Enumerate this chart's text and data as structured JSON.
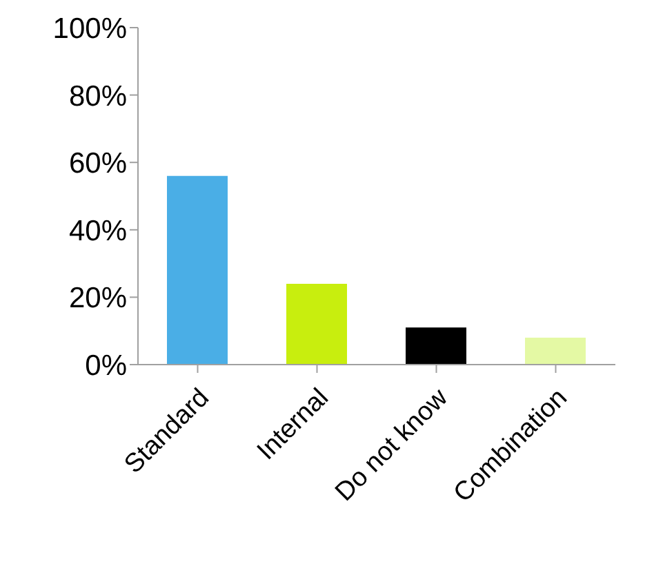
{
  "chart_data": {
    "type": "bar",
    "categories": [
      "Standard",
      "Internal",
      "Do not know",
      "Combination"
    ],
    "values": [
      56,
      24,
      11,
      8
    ],
    "colors": [
      "#4aaee6",
      "#c8ee0e",
      "#000000",
      "#e4f9a4"
    ],
    "ylim": [
      0,
      100
    ],
    "yticks": [
      {
        "value": 0,
        "label": "0%"
      },
      {
        "value": 20,
        "label": "20%"
      },
      {
        "value": 40,
        "label": "40%"
      },
      {
        "value": 60,
        "label": "60%"
      },
      {
        "value": 80,
        "label": "80%"
      },
      {
        "value": 100,
        "label": "100%"
      }
    ],
    "grid": false
  }
}
